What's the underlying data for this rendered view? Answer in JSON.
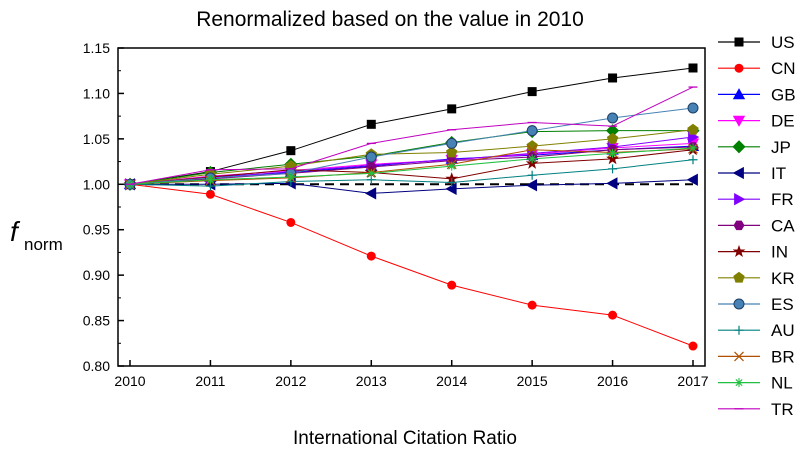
{
  "chart_data": {
    "type": "line",
    "title": "Renormalized based on the value in 2010",
    "xlabel": "International Citation Ratio",
    "ylabel_main": "f",
    "ylabel_sub": "norm",
    "x": [
      2010,
      2011,
      2012,
      2013,
      2014,
      2015,
      2016,
      2017
    ],
    "x_tick_labels": [
      "2010",
      "2011",
      "2012",
      "2013",
      "2014",
      "2015",
      "2016",
      "2017"
    ],
    "ylim": [
      0.8,
      1.15
    ],
    "y_ticks": [
      0.8,
      0.85,
      0.9,
      0.95,
      1.0,
      1.05,
      1.1,
      1.15
    ],
    "y_tick_labels": [
      "0.80",
      "0.85",
      "0.90",
      "0.95",
      "1.00",
      "1.05",
      "1.10",
      "1.15"
    ],
    "reference_line": 1.0,
    "legend_position": "right",
    "series": [
      {
        "name": "US",
        "color": "#000000",
        "marker": "square",
        "values": [
          1.0,
          1.014,
          1.037,
          1.066,
          1.083,
          1.102,
          1.117,
          1.128
        ]
      },
      {
        "name": "CN",
        "color": "#ff0000",
        "marker": "circle",
        "values": [
          1.0,
          0.989,
          0.958,
          0.921,
          0.889,
          0.867,
          0.856,
          0.822
        ]
      },
      {
        "name": "GB",
        "color": "#0000ff",
        "marker": "triangle-up",
        "values": [
          1.0,
          1.008,
          1.013,
          1.02,
          1.028,
          1.032,
          1.038,
          1.042
        ]
      },
      {
        "name": "DE",
        "color": "#ff00ff",
        "marker": "triangle-down",
        "values": [
          1.0,
          1.009,
          1.015,
          1.022,
          1.027,
          1.033,
          1.04,
          1.045
        ]
      },
      {
        "name": "JP",
        "color": "#008000",
        "marker": "diamond",
        "values": [
          1.0,
          1.013,
          1.022,
          1.031,
          1.046,
          1.058,
          1.059,
          1.059
        ]
      },
      {
        "name": "IT",
        "color": "#000080",
        "marker": "triangle-left",
        "values": [
          1.0,
          1.0,
          1.001,
          0.99,
          0.995,
          0.999,
          1.001,
          1.005
        ]
      },
      {
        "name": "FR",
        "color": "#8000ff",
        "marker": "triangle-right",
        "values": [
          1.0,
          1.007,
          1.014,
          1.021,
          1.027,
          1.034,
          1.041,
          1.052
        ]
      },
      {
        "name": "CA",
        "color": "#800080",
        "marker": "hexagon",
        "values": [
          1.0,
          1.006,
          1.012,
          1.019,
          1.026,
          1.03,
          1.038,
          1.041
        ]
      },
      {
        "name": "IN",
        "color": "#800000",
        "marker": "star",
        "values": [
          1.0,
          1.008,
          1.016,
          1.013,
          1.006,
          1.023,
          1.028,
          1.038
        ]
      },
      {
        "name": "KR",
        "color": "#808000",
        "marker": "pentagon",
        "values": [
          1.0,
          1.011,
          1.02,
          1.033,
          1.035,
          1.042,
          1.05,
          1.06
        ]
      },
      {
        "name": "ES",
        "color": "#4682b4",
        "marker": "sphere",
        "values": [
          1.0,
          1.007,
          1.012,
          1.03,
          1.045,
          1.059,
          1.073,
          1.084
        ]
      },
      {
        "name": "AU",
        "color": "#008080",
        "marker": "plus",
        "values": [
          1.0,
          0.998,
          1.003,
          1.005,
          1.002,
          1.01,
          1.017,
          1.027
        ]
      },
      {
        "name": "BR",
        "color": "#b05000",
        "marker": "x",
        "values": [
          1.0,
          1.004,
          1.007,
          1.013,
          1.022,
          1.038,
          1.035,
          1.039
        ]
      },
      {
        "name": "NL",
        "color": "#20c040",
        "marker": "asterisk",
        "values": [
          1.0,
          1.005,
          1.008,
          1.012,
          1.02,
          1.028,
          1.034,
          1.04
        ]
      },
      {
        "name": "TR",
        "color": "#c000c0",
        "marker": "dash",
        "values": [
          1.0,
          1.016,
          1.017,
          1.045,
          1.06,
          1.068,
          1.064,
          1.107
        ]
      }
    ]
  }
}
